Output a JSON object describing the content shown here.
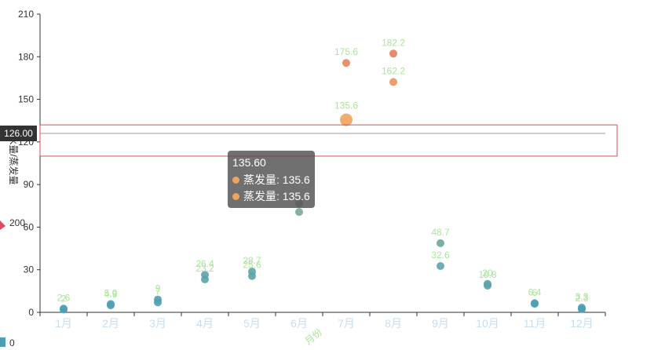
{
  "chart_data": {
    "type": "scatter",
    "categories": [
      "1月",
      "2月",
      "3月",
      "4月",
      "5月",
      "6月",
      "7月",
      "8月",
      "9月",
      "10月",
      "11月",
      "12月"
    ],
    "xlabel": "月份",
    "ylabel": "降水量/蒸发量",
    "ylim": [
      0,
      210
    ],
    "yticks": [
      0,
      30,
      60,
      90,
      120,
      150,
      180,
      210
    ],
    "grid": false,
    "series": [
      {
        "key": "evaporation",
        "name": "蒸发量",
        "values": [
          2.0,
          4.9,
          7.0,
          23.2,
          25.6,
          76.7,
          135.6,
          162.2,
          32.6,
          20.0,
          6.4,
          3.3
        ],
        "labels": [
          "2",
          "4.9",
          "7",
          "23.2",
          "25.6",
          "",
          "135.6",
          "162.2",
          "32.6",
          "20",
          "6.4",
          "3.3"
        ]
      },
      {
        "key": "precipitation",
        "values": [
          2.6,
          5.9,
          9.0,
          26.4,
          28.7,
          70.7,
          175.6,
          182.2,
          48.7,
          18.8,
          6.0,
          2.3
        ],
        "labels": [
          "2.6",
          "5.9",
          "9",
          "26.4",
          "28.7",
          "",
          "175.6",
          "182.2",
          "48.7",
          "18.8",
          "6",
          "2.3"
        ]
      }
    ],
    "highlight": {
      "category": "7月",
      "value": 135.6
    },
    "axis_pointer_value": "126.00",
    "visual_map": {
      "max_label": "200",
      "min_label": "0",
      "low_color": "#4a9fb5",
      "high_color": "#d94e5d"
    }
  },
  "tooltip": {
    "title": "135.60",
    "rows": [
      "蒸发量: 135.6",
      "蒸发量: 135.6"
    ],
    "dot_color": "#f0a35c"
  },
  "colors": {
    "label_green": "#a8e89a",
    "axis": "#333333",
    "month_label": "#c5dff0",
    "brush_border": "#d94e5d"
  }
}
